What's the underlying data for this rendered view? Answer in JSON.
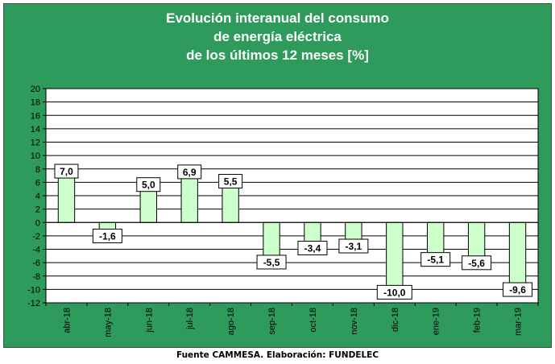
{
  "chart_data": {
    "type": "bar",
    "title_lines": [
      "Evolución interanual del consumo",
      "de energía eléctrica",
      "de los últimos 12 meses [%]"
    ],
    "categories": [
      "abr-18",
      "may-18",
      "jun-18",
      "jul-18",
      "ago-18",
      "sep-18",
      "oct-18",
      "nov-18",
      "dic-18",
      "ene-19",
      "feb-19",
      "mar-19"
    ],
    "values": [
      7.0,
      -1.6,
      5.0,
      6.9,
      5.5,
      -5.5,
      -3.4,
      -3.1,
      -10.0,
      -5.1,
      -5.6,
      -9.6
    ],
    "data_labels": [
      "7,0",
      "-1,6",
      "5,0",
      "6,9",
      "5,5",
      "-5,5",
      "-3,4",
      "-3,1",
      "-10,0",
      "-5,1",
      "-5,6",
      "-9,6"
    ],
    "ylim": [
      -12,
      20
    ],
    "yticks": [
      -12,
      -10,
      -8,
      -6,
      -4,
      -2,
      0,
      2,
      4,
      6,
      8,
      10,
      12,
      14,
      16,
      18,
      20
    ],
    "grid": true,
    "xlabel": "",
    "ylabel": "",
    "colors": {
      "panel_bg": "#2e9a5c",
      "plot_bg": "#ffffff",
      "bar_fill": "#ccffcc",
      "bar_stroke": "#000000",
      "title": "#ffffff"
    }
  },
  "footer": "Fuente CAMMESA. Elaboración: FUNDELEC"
}
